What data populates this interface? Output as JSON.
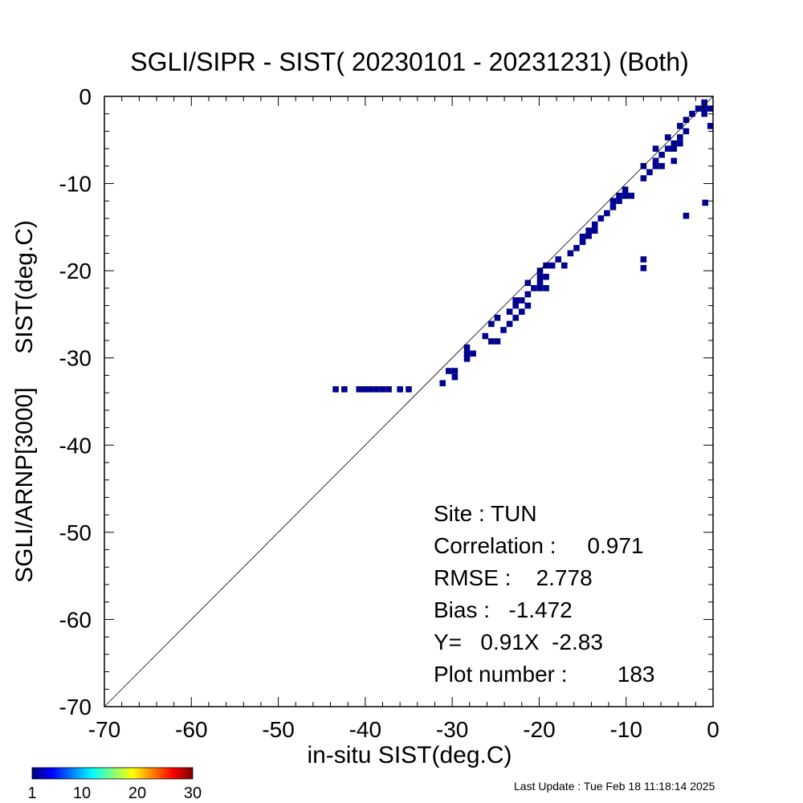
{
  "chart_data": {
    "type": "heatmap",
    "title": "SGLI/SIPR - SIST( 20230101 - 20231231) (Both)",
    "xlabel": "in-situ SIST(deg.C)",
    "ylabel": "SGLI/ARNP[3000]     SIST(deg.C)",
    "xlim": [
      -70,
      0
    ],
    "ylim": [
      -70,
      0
    ],
    "x_ticks": [
      "-70",
      "-60",
      "-50",
      "-40",
      "-30",
      "-20",
      "-10",
      "0"
    ],
    "y_ticks": [
      "-70",
      "-60",
      "-50",
      "-40",
      "-30",
      "-20",
      "-10",
      "0"
    ],
    "reference_line": "1:1",
    "cell_color": "#00008f",
    "cell_size": 0.7,
    "cells": [
      [
        -43.4,
        -33.6
      ],
      [
        -42.4,
        -33.6
      ],
      [
        -40.7,
        -33.6
      ],
      [
        -40.0,
        -33.6
      ],
      [
        -39.4,
        -33.6
      ],
      [
        -38.7,
        -33.6
      ],
      [
        -38.0,
        -33.6
      ],
      [
        -37.3,
        -33.6
      ],
      [
        -36.0,
        -33.6
      ],
      [
        -35.0,
        -33.6
      ],
      [
        -31.1,
        -32.9
      ],
      [
        -30.4,
        -31.5
      ],
      [
        -29.7,
        -31.5
      ],
      [
        -29.7,
        -32.2
      ],
      [
        -28.3,
        -29.5
      ],
      [
        -27.6,
        -29.5
      ],
      [
        -28.3,
        -28.8
      ],
      [
        -28.3,
        -30.1
      ],
      [
        -26.2,
        -27.5
      ],
      [
        -25.5,
        -28.1
      ],
      [
        -24.8,
        -28.1
      ],
      [
        -25.5,
        -26.1
      ],
      [
        -24.1,
        -26.8
      ],
      [
        -24.8,
        -25.4
      ],
      [
        -23.4,
        -26.1
      ],
      [
        -22.7,
        -25.4
      ],
      [
        -22.0,
        -24.7
      ],
      [
        -22.7,
        -24.0
      ],
      [
        -22.0,
        -23.4
      ],
      [
        -21.3,
        -24.0
      ],
      [
        -23.4,
        -24.7
      ],
      [
        -22.7,
        -23.4
      ],
      [
        -21.3,
        -22.7
      ],
      [
        -20.6,
        -22.0
      ],
      [
        -19.9,
        -21.4
      ],
      [
        -19.2,
        -20.7
      ],
      [
        -19.9,
        -22.0
      ],
      [
        -19.2,
        -22.0
      ],
      [
        -19.9,
        -20.0
      ],
      [
        -19.2,
        -19.4
      ],
      [
        -18.5,
        -19.4
      ],
      [
        -19.9,
        -20.7
      ],
      [
        -21.3,
        -21.4
      ],
      [
        -17.1,
        -19.4
      ],
      [
        -16.4,
        -18.0
      ],
      [
        -15.7,
        -17.4
      ],
      [
        -17.8,
        -18.7
      ],
      [
        -15.0,
        -16.7
      ],
      [
        -14.3,
        -15.4
      ],
      [
        -13.6,
        -14.7
      ],
      [
        -12.9,
        -14.0
      ],
      [
        -14.3,
        -16.0
      ],
      [
        -13.6,
        -15.4
      ],
      [
        -15.0,
        -16.1
      ],
      [
        -12.2,
        -13.4
      ],
      [
        -11.5,
        -12.0
      ],
      [
        -10.8,
        -11.4
      ],
      [
        -10.1,
        -10.7
      ],
      [
        -11.5,
        -12.7
      ],
      [
        -10.8,
        -12.0
      ],
      [
        -9.4,
        -11.4
      ],
      [
        -10.1,
        -11.4
      ],
      [
        -8.0,
        -9.4
      ],
      [
        -7.3,
        -8.7
      ],
      [
        -6.6,
        -8.0
      ],
      [
        -5.9,
        -8.0
      ],
      [
        -8.0,
        -8.0
      ],
      [
        -6.6,
        -7.4
      ],
      [
        -5.9,
        -6.7
      ],
      [
        -5.2,
        -6.0
      ],
      [
        -4.5,
        -6.0
      ],
      [
        -4.5,
        -5.4
      ],
      [
        -3.8,
        -4.7
      ],
      [
        -3.1,
        -4.0
      ],
      [
        -3.8,
        -3.4
      ],
      [
        -3.1,
        -2.7
      ],
      [
        -2.4,
        -2.0
      ],
      [
        -1.7,
        -1.4
      ],
      [
        -1.0,
        -1.4
      ],
      [
        -1.0,
        -0.7
      ],
      [
        -0.3,
        -1.4
      ],
      [
        -0.3,
        -3.4
      ],
      [
        -1.0,
        -2.0
      ],
      [
        -4.5,
        -7.4
      ],
      [
        -6.6,
        -6.0
      ],
      [
        -5.2,
        -4.7
      ],
      [
        -3.8,
        -5.4
      ],
      [
        -8.0,
        -18.7
      ],
      [
        -8.0,
        -19.7
      ],
      [
        -3.1,
        -13.7
      ],
      [
        -0.9,
        -12.2
      ]
    ],
    "colorbar": {
      "ticks": [
        "1",
        "10",
        "20",
        "30"
      ],
      "values": [
        1,
        10,
        20,
        30
      ],
      "range": [
        1,
        30
      ],
      "colormap": "jet"
    },
    "annotations": {
      "site": "Site : TUN",
      "correlation": "Correlation :     0.971",
      "rmse": "RMSE :    2.778",
      "bias": "Bias :   -1.472",
      "fit": "Y=   0.91X  -2.83",
      "plot_number": "Plot number :        183"
    }
  },
  "footer": {
    "last_update": "Last Update : Tue Feb 18 11:18:14 2025"
  }
}
